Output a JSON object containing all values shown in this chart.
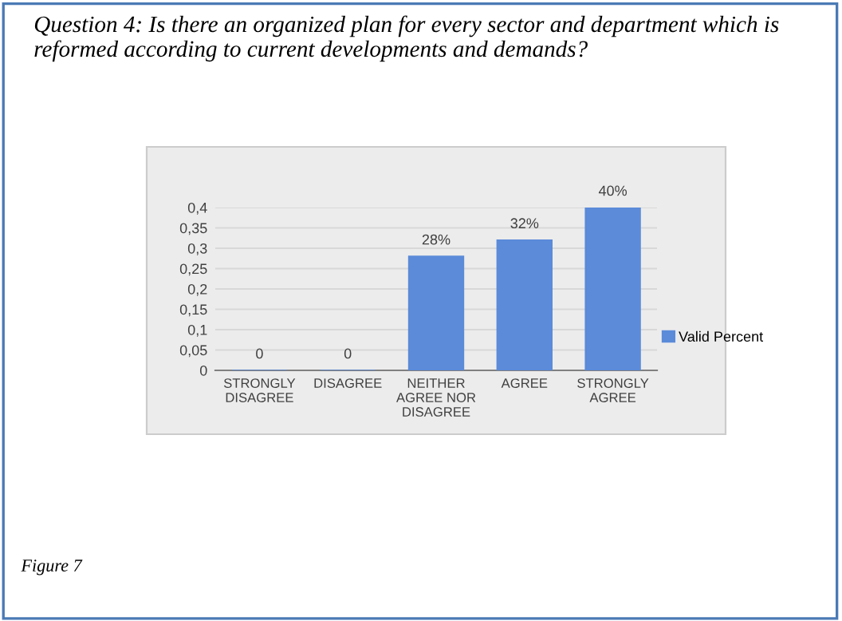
{
  "chart_data": {
    "type": "bar",
    "title": "Question 4: Is there an organized plan for every sector and department which is reformed according to current developments and demands?",
    "categories": [
      "STRONGLY\nDISAGREE",
      "DISAGREE",
      "NEITHER\nAGREE NOR\nDISAGREE",
      "AGREE",
      "STRONGLY\nAGREE"
    ],
    "series": [
      {
        "name": "Valid Percent",
        "color": "#5b8bd9",
        "values": [
          0,
          0,
          0.28,
          0.32,
          0.4
        ],
        "value_labels": [
          "0",
          "0",
          "28%",
          "32%",
          "40%"
        ]
      }
    ],
    "ylim": [
      0,
      0.4
    ],
    "yticks": [
      {
        "value": 0,
        "label": "0"
      },
      {
        "value": 0.05,
        "label": "0,05"
      },
      {
        "value": 0.1,
        "label": "0,1"
      },
      {
        "value": 0.15,
        "label": "0,15"
      },
      {
        "value": 0.2,
        "label": "0,2"
      },
      {
        "value": 0.25,
        "label": "0,25"
      },
      {
        "value": 0.3,
        "label": "0,3"
      },
      {
        "value": 0.35,
        "label": "0,35"
      },
      {
        "value": 0.4,
        "label": "0,4"
      }
    ],
    "grid": "y",
    "legend": "right",
    "annotations": [
      "Figure 7"
    ]
  }
}
